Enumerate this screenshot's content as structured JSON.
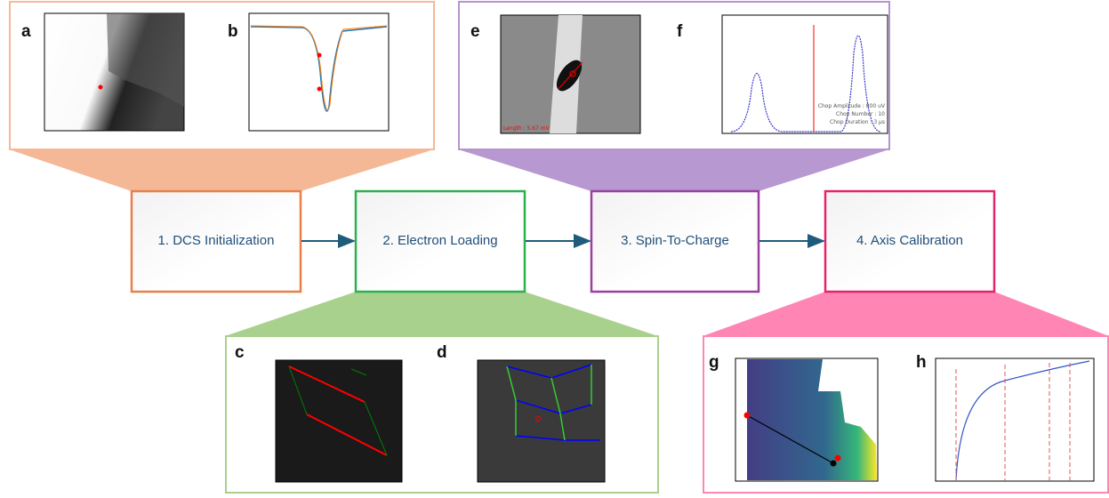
{
  "steps": [
    {
      "label": "1. DCS Initialization"
    },
    {
      "label": "2. Electron Loading"
    },
    {
      "label": "3. Spin-To-Charge"
    },
    {
      "label": "4. Axis Calibration"
    }
  ],
  "panels": [
    {
      "label": "a"
    },
    {
      "label": "b"
    },
    {
      "label": "c"
    },
    {
      "label": "d"
    },
    {
      "label": "e",
      "annotation": "Length : 5.67 mV"
    },
    {
      "label": "f",
      "annotations": [
        "Chop Amplitude : 800 uV",
        "Chop Number : 10",
        "Chop Duration : 3 µs"
      ]
    },
    {
      "label": "g"
    },
    {
      "label": "h"
    }
  ]
}
